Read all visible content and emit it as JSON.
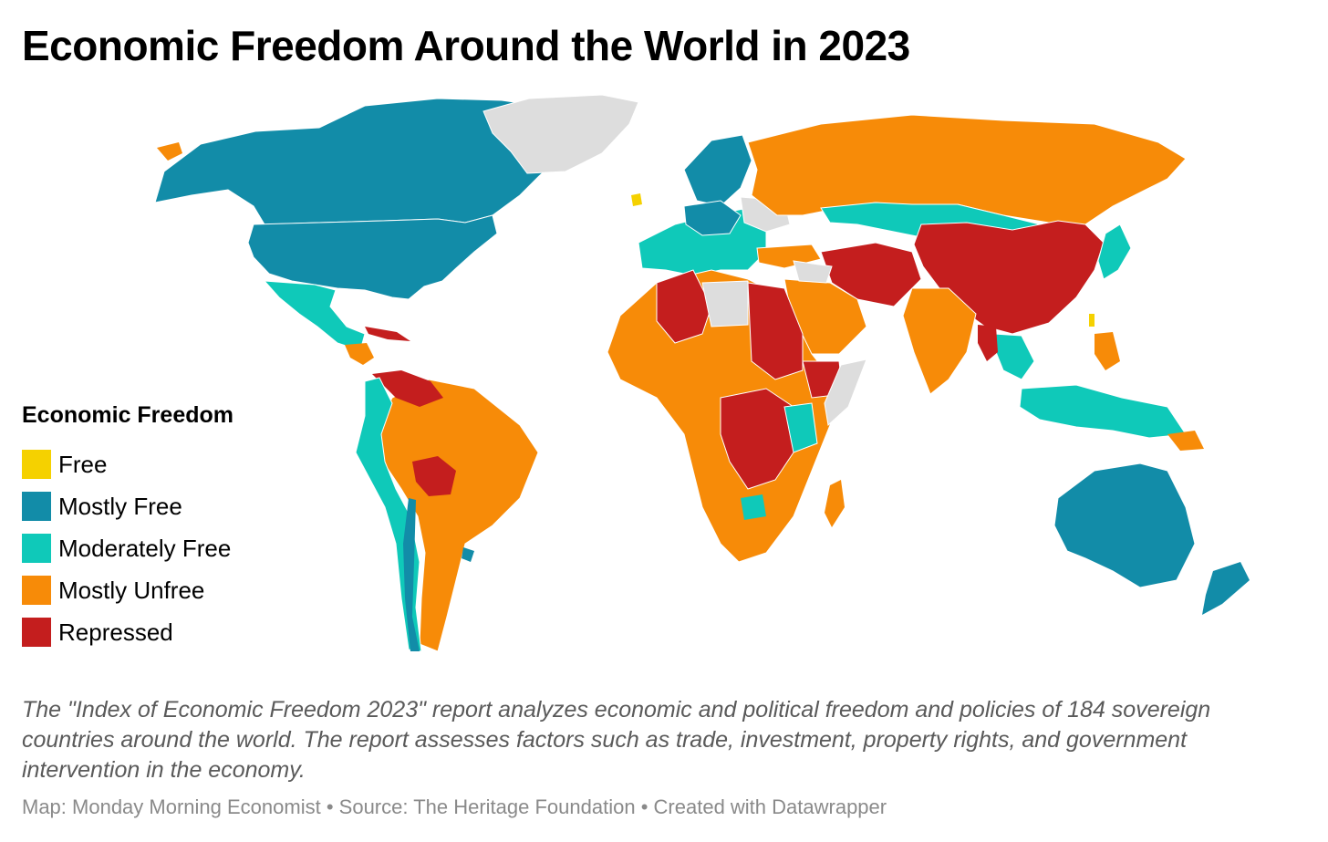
{
  "title": "Economic Freedom Around the World in 2023",
  "legend": {
    "title": "Economic Freedom",
    "items": [
      {
        "label": "Free",
        "color": "#f5d100"
      },
      {
        "label": "Mostly Free",
        "color": "#128ca8"
      },
      {
        "label": "Moderately Free",
        "color": "#0fc9b9"
      },
      {
        "label": "Mostly Unfree",
        "color": "#f78b08"
      },
      {
        "label": "Repressed",
        "color": "#c41e1e"
      }
    ],
    "no_data_color": "#dddddd"
  },
  "description": "The \"Index of Economic Freedom 2023\" report analyzes economic and political freedom and policies of 184 sovereign countries around the world. The report assesses factors such as trade, investment, property rights, and government intervention in the economy.",
  "footer": {
    "credit": "Map: Monday Morning Economist",
    "source": "Source: The Heritage Foundation",
    "tool": "Created with Datawrapper",
    "separator": "•"
  }
}
